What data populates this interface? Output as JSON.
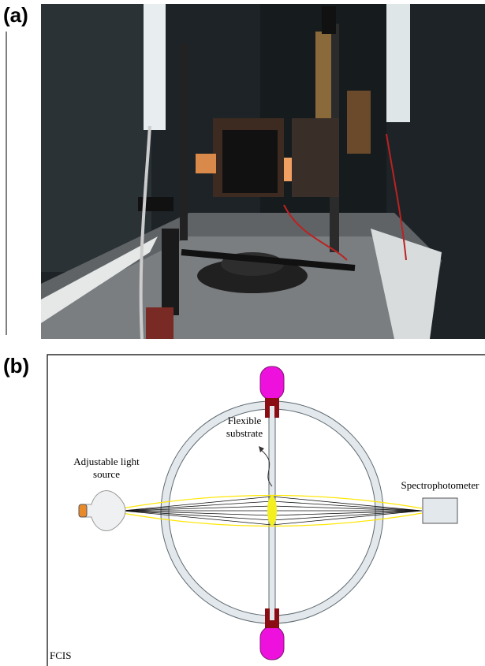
{
  "panel_a": {
    "label": "(a)"
  },
  "panel_b": {
    "label": "(b)",
    "light_source": [
      "Adjustable light",
      "source"
    ],
    "substrate": [
      "Flexible",
      "substrate"
    ],
    "detector": "Spectrophotometer",
    "corner": "FCIS"
  }
}
